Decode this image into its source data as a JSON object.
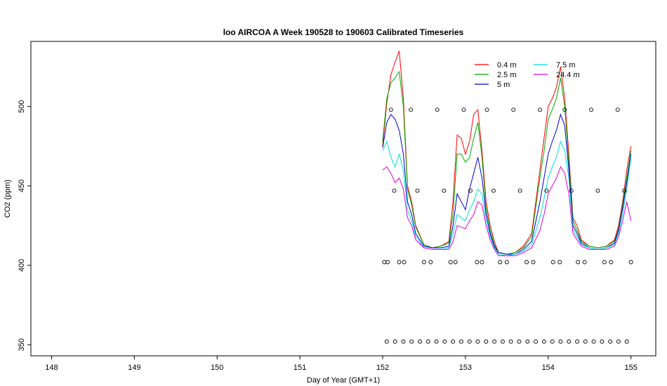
{
  "chart_data": {
    "type": "line",
    "title": "loo AIRCOA A  Week 190528 to 190603  Calibrated Timeseries",
    "xlabel": "Day of Year (GMT+1)",
    "ylabel": "CO2 (ppm)",
    "xlim": [
      147.75,
      155.3
    ],
    "ylim": [
      343,
      541
    ],
    "x_ticks": [
      148,
      149,
      150,
      151,
      152,
      153,
      154,
      155
    ],
    "y_ticks": [
      350,
      400,
      450,
      500
    ],
    "grid": false,
    "legend_position": "top-right",
    "series": [
      {
        "name": "0.4 m",
        "color": "#ff0000",
        "x": [
          152.0,
          152.05,
          152.1,
          152.15,
          152.2,
          152.25,
          152.3,
          152.35,
          152.4,
          152.5,
          152.6,
          152.7,
          152.8,
          152.85,
          152.9,
          152.95,
          153.0,
          153.05,
          153.1,
          153.15,
          153.2,
          153.25,
          153.3,
          153.35,
          153.4,
          153.5,
          153.6,
          153.7,
          153.8,
          153.9,
          153.95,
          154.0,
          154.05,
          154.1,
          154.15,
          154.2,
          154.25,
          154.3,
          154.35,
          154.4,
          154.5,
          154.6,
          154.7,
          154.8,
          154.85,
          154.9,
          154.95,
          155.0
        ],
        "values": [
          475,
          502,
          520,
          528,
          535,
          505,
          450,
          440,
          425,
          413,
          411,
          412,
          415,
          440,
          482,
          480,
          470,
          478,
          495,
          498,
          472,
          440,
          425,
          415,
          408,
          407,
          408,
          412,
          420,
          460,
          480,
          500,
          505,
          512,
          525,
          505,
          470,
          430,
          425,
          416,
          412,
          411,
          412,
          416,
          425,
          440,
          460,
          475
        ]
      },
      {
        "name": "2.5 m",
        "color": "#00aa00",
        "x": [
          152.0,
          152.05,
          152.1,
          152.15,
          152.2,
          152.25,
          152.3,
          152.35,
          152.4,
          152.5,
          152.6,
          152.7,
          152.8,
          152.85,
          152.9,
          152.95,
          153.0,
          153.05,
          153.1,
          153.15,
          153.2,
          153.25,
          153.3,
          153.35,
          153.4,
          153.5,
          153.6,
          153.7,
          153.8,
          153.9,
          153.95,
          154.0,
          154.05,
          154.1,
          154.15,
          154.2,
          154.25,
          154.3,
          154.35,
          154.4,
          154.5,
          154.6,
          154.7,
          154.8,
          154.85,
          154.9,
          154.95,
          155.0
        ],
        "values": [
          478,
          505,
          515,
          518,
          522,
          500,
          448,
          438,
          424,
          413,
          411,
          412,
          414,
          432,
          470,
          470,
          465,
          468,
          480,
          490,
          468,
          436,
          422,
          413,
          408,
          407,
          408,
          411,
          418,
          455,
          472,
          492,
          498,
          505,
          518,
          500,
          465,
          428,
          422,
          415,
          412,
          411,
          412,
          415,
          423,
          438,
          455,
          472
        ]
      },
      {
        "name": "5 m",
        "color": "#0000cc",
        "x": [
          152.0,
          152.05,
          152.1,
          152.15,
          152.2,
          152.25,
          152.3,
          152.35,
          152.4,
          152.5,
          152.6,
          152.7,
          152.8,
          152.85,
          152.9,
          152.95,
          153.0,
          153.05,
          153.1,
          153.15,
          153.2,
          153.25,
          153.3,
          153.35,
          153.4,
          153.5,
          153.6,
          153.7,
          153.8,
          153.9,
          153.95,
          154.0,
          154.05,
          154.1,
          154.15,
          154.2,
          154.25,
          154.3,
          154.35,
          154.4,
          154.5,
          154.6,
          154.7,
          154.8,
          154.85,
          154.9,
          154.95,
          155.0
        ],
        "values": [
          474,
          490,
          495,
          492,
          485,
          470,
          440,
          432,
          420,
          412,
          411,
          411,
          412,
          425,
          445,
          440,
          435,
          448,
          458,
          468,
          455,
          432,
          420,
          412,
          408,
          407,
          407,
          410,
          415,
          440,
          455,
          470,
          478,
          485,
          495,
          488,
          460,
          425,
          420,
          414,
          411,
          410,
          411,
          414,
          422,
          436,
          452,
          470
        ]
      },
      {
        "name": "7.5 m",
        "color": "#00dddd",
        "x": [
          152.0,
          152.05,
          152.1,
          152.15,
          152.2,
          152.25,
          152.3,
          152.35,
          152.4,
          152.5,
          152.6,
          152.7,
          152.8,
          152.85,
          152.9,
          152.95,
          153.0,
          153.05,
          153.1,
          153.15,
          153.2,
          153.25,
          153.3,
          153.35,
          153.4,
          153.5,
          153.6,
          153.7,
          153.8,
          153.9,
          153.95,
          154.0,
          154.05,
          154.1,
          154.15,
          154.2,
          154.25,
          154.3,
          154.35,
          154.4,
          154.5,
          154.6,
          154.7,
          154.8,
          154.85,
          154.9,
          154.95,
          155.0
        ],
        "values": [
          472,
          478,
          468,
          462,
          470,
          460,
          435,
          428,
          418,
          411,
          410,
          410,
          411,
          420,
          432,
          430,
          428,
          435,
          440,
          448,
          445,
          428,
          418,
          411,
          407,
          406,
          407,
          409,
          413,
          430,
          442,
          455,
          462,
          468,
          478,
          472,
          455,
          422,
          418,
          413,
          411,
          410,
          411,
          413,
          420,
          432,
          448,
          468
        ]
      },
      {
        "name": "24.4 m",
        "color": "#dd00dd",
        "x": [
          152.0,
          152.05,
          152.1,
          152.15,
          152.2,
          152.25,
          152.3,
          152.35,
          152.4,
          152.5,
          152.6,
          152.7,
          152.8,
          152.85,
          152.9,
          152.95,
          153.0,
          153.05,
          153.1,
          153.15,
          153.2,
          153.25,
          153.3,
          153.35,
          153.4,
          153.5,
          153.6,
          153.7,
          153.8,
          153.9,
          153.95,
          154.0,
          154.05,
          154.1,
          154.15,
          154.2,
          154.25,
          154.3,
          154.35,
          154.4,
          154.5,
          154.6,
          154.7,
          154.8,
          154.85,
          154.9,
          154.95,
          155.0
        ],
        "values": [
          460,
          462,
          458,
          452,
          455,
          448,
          430,
          425,
          416,
          411,
          410,
          410,
          410,
          415,
          425,
          424,
          423,
          428,
          432,
          440,
          438,
          425,
          416,
          410,
          406,
          406,
          406,
          408,
          411,
          422,
          432,
          445,
          450,
          455,
          462,
          458,
          445,
          420,
          416,
          412,
          410,
          410,
          410,
          412,
          418,
          428,
          440,
          428
        ]
      },
      {
        "name": "",
        "type": "scatter",
        "color": "#000000",
        "x": [
          152.02,
          152.06,
          152.1,
          152.14,
          152.2,
          152.26,
          152.34,
          152.42,
          152.5,
          152.58,
          152.66,
          152.74,
          152.82,
          152.88,
          152.98,
          153.06,
          153.14,
          153.2,
          153.26,
          153.34,
          153.42,
          153.5,
          153.58,
          153.66,
          153.74,
          153.82,
          153.9,
          153.98,
          154.06,
          154.14,
          154.2,
          154.28,
          154.36,
          154.44,
          154.52,
          154.6,
          154.68,
          154.76,
          154.84,
          154.92,
          155.0
        ],
        "values": [
          402,
          402,
          498,
          447,
          402,
          402,
          498,
          447,
          402,
          402,
          498,
          447,
          402,
          402,
          498,
          447,
          402,
          402,
          498,
          447,
          402,
          402,
          498,
          447,
          402,
          402,
          498,
          447,
          402,
          402,
          498,
          447,
          402,
          402,
          498,
          447,
          402,
          402,
          498,
          447,
          402
        ]
      },
      {
        "name": "",
        "type": "scatter",
        "color": "#000000",
        "x": [
          152.05,
          152.15,
          152.25,
          152.35,
          152.45,
          152.55,
          152.65,
          152.75,
          152.85,
          152.95,
          153.05,
          153.15,
          153.25,
          153.35,
          153.45,
          153.55,
          153.65,
          153.75,
          153.85,
          153.95,
          154.05,
          154.15,
          154.25,
          154.35,
          154.45,
          154.55,
          154.65,
          154.75,
          154.85,
          154.95
        ],
        "values": [
          352,
          352,
          352,
          352,
          352,
          352,
          352,
          352,
          352,
          352,
          352,
          352,
          352,
          352,
          352,
          352,
          352,
          352,
          352,
          352,
          352,
          352,
          352,
          352,
          352,
          352,
          352,
          352,
          352,
          352
        ]
      }
    ]
  }
}
